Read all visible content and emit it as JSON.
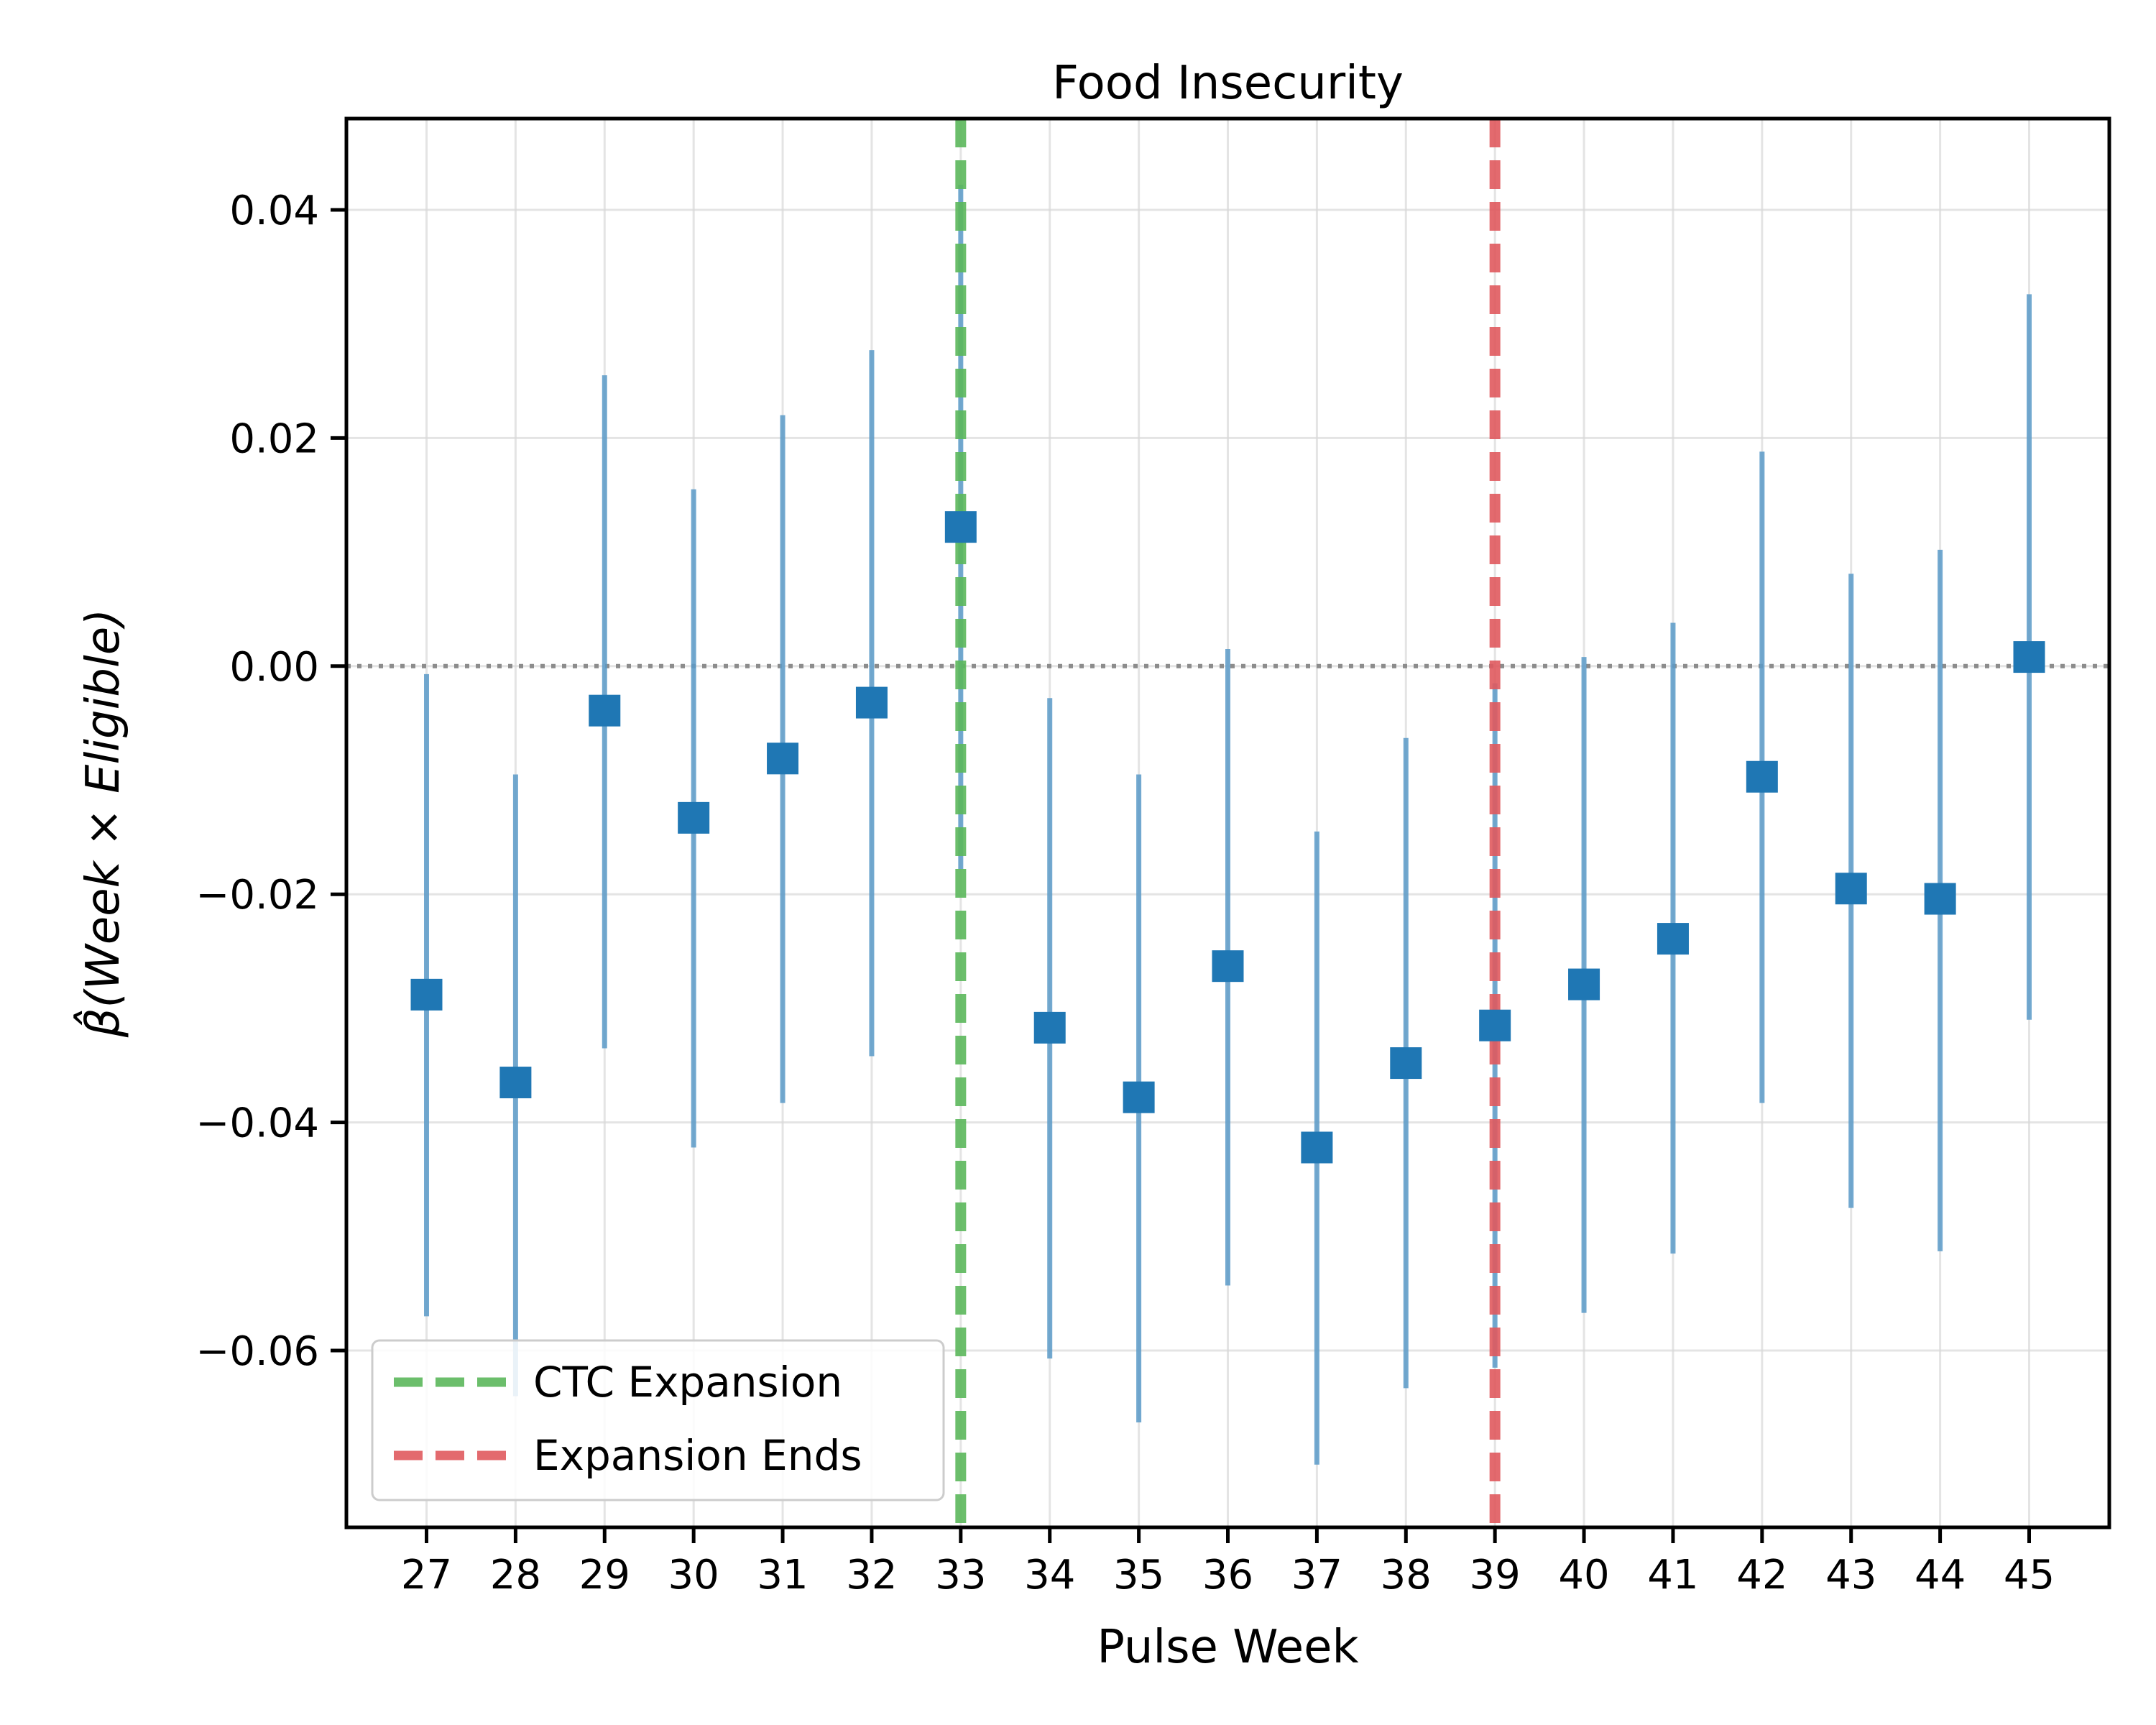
{
  "chart_data": {
    "type": "scatter",
    "title": "Food Insecurity",
    "xlabel": "Pulse Week",
    "ylabel": "β̂(Week × Eligible)",
    "xlim": [
      26.1,
      45.9
    ],
    "ylim": [
      -0.0755,
      0.048
    ],
    "x_ticks": [
      27,
      28,
      29,
      30,
      31,
      32,
      33,
      34,
      35,
      36,
      37,
      38,
      39,
      40,
      41,
      42,
      43,
      44,
      45
    ],
    "y_ticks": [
      -0.06,
      -0.04,
      -0.02,
      0.0,
      0.02,
      0.04
    ],
    "y_tick_labels": [
      "−0.06",
      "−0.04",
      "−0.02",
      "0.00",
      "0.02",
      "0.04"
    ],
    "grid": true,
    "zero_line": 0.0,
    "point_color": "#1f77b4",
    "errorbar_color": "#5b9bc8",
    "series": [
      {
        "x": [
          27,
          28,
          29,
          30,
          31,
          32,
          33,
          34,
          35,
          36,
          37,
          38,
          39,
          40,
          41,
          42,
          43,
          44,
          45
        ],
        "y": [
          -0.0288,
          -0.0365,
          -0.0039,
          -0.0133,
          -0.0081,
          -0.0032,
          0.0122,
          -0.0317,
          -0.0378,
          -0.0263,
          -0.0422,
          -0.0348,
          -0.0315,
          -0.0279,
          -0.0239,
          -0.0097,
          -0.0195,
          -0.0204,
          0.0008
        ],
        "ci_low": [
          -0.057,
          -0.064,
          -0.0335,
          -0.0422,
          -0.0383,
          -0.0342,
          -0.0178,
          -0.0607,
          -0.0663,
          -0.0543,
          -0.07,
          -0.0633,
          -0.0615,
          -0.0567,
          -0.0515,
          -0.0383,
          -0.0475,
          -0.0513,
          -0.031
        ],
        "ci_high": [
          -0.0007,
          -0.0095,
          0.0255,
          0.0155,
          0.022,
          0.0277,
          0.0422,
          -0.0028,
          -0.0095,
          0.0015,
          -0.0145,
          -0.0063,
          -0.0015,
          0.0008,
          0.0038,
          0.0188,
          0.0081,
          0.0102,
          0.0326
        ]
      }
    ],
    "vlines": [
      {
        "x": 33,
        "label": "CTC Expansion",
        "color": "#5cb85c"
      },
      {
        "x": 39,
        "label": "Expansion Ends",
        "color": "#e05a5f"
      }
    ],
    "legend_position": "lower-left"
  }
}
